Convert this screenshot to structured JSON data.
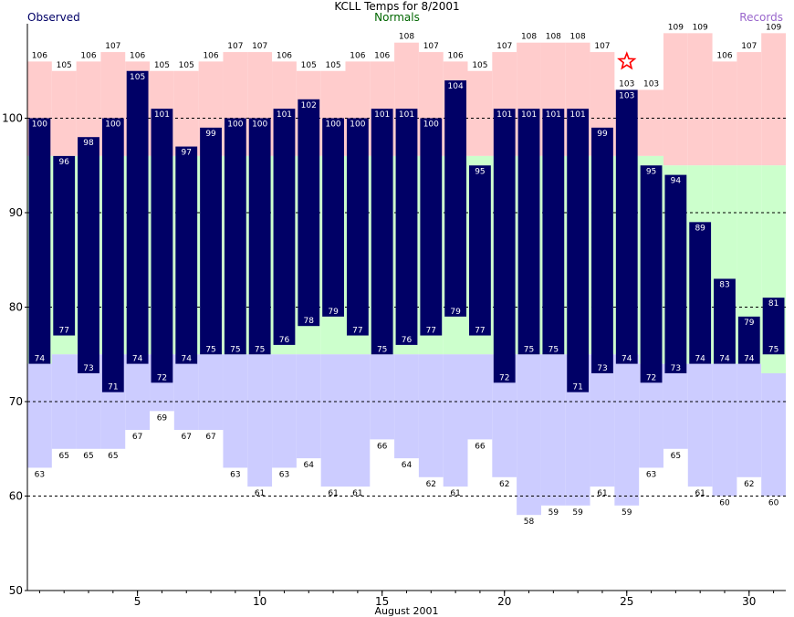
{
  "chart_data": {
    "type": "bar",
    "title": "KCLL Temps for 8/2001",
    "xlabel": "August 2001",
    "ylabel": "",
    "ylim": [
      50,
      110
    ],
    "xlim": [
      0.5,
      31.5
    ],
    "x_ticks": [
      5,
      10,
      15,
      20,
      25,
      30
    ],
    "y_ticks": [
      50,
      60,
      70,
      80,
      90,
      100
    ],
    "gridlines_y": [
      60,
      70,
      80,
      90,
      100
    ],
    "legend": [
      {
        "name": "Observed",
        "color": "#000066"
      },
      {
        "name": "Normals",
        "color": "#006600"
      },
      {
        "name": "Records",
        "color": "#9966cc"
      }
    ],
    "days": [
      1,
      2,
      3,
      4,
      5,
      6,
      7,
      8,
      9,
      10,
      11,
      12,
      13,
      14,
      15,
      16,
      17,
      18,
      19,
      20,
      21,
      22,
      23,
      24,
      25,
      26,
      27,
      28,
      29,
      30,
      31
    ],
    "observed_high": [
      100,
      96,
      98,
      100,
      105,
      101,
      97,
      99,
      100,
      100,
      101,
      102,
      100,
      100,
      101,
      101,
      100,
      104,
      95,
      101,
      101,
      101,
      101,
      99,
      103,
      95,
      94,
      89,
      83,
      79,
      81
    ],
    "observed_low": [
      74,
      77,
      73,
      71,
      74,
      72,
      74,
      75,
      75,
      75,
      76,
      78,
      79,
      77,
      75,
      76,
      77,
      79,
      77,
      72,
      75,
      75,
      71,
      73,
      74,
      72,
      73,
      74,
      74,
      74,
      75
    ],
    "normal_high": [
      96,
      96,
      96,
      96,
      96,
      96,
      96,
      96,
      96,
      96,
      96,
      96,
      96,
      96,
      96,
      96,
      96,
      96,
      96,
      96,
      96,
      96,
      96,
      96,
      96,
      96,
      95,
      95,
      95,
      95,
      95
    ],
    "normal_low": [
      74,
      75,
      75,
      75,
      75,
      75,
      75,
      75,
      75,
      75,
      75,
      75,
      75,
      75,
      75,
      75,
      75,
      75,
      75,
      75,
      75,
      75,
      75,
      75,
      75,
      74,
      74,
      74,
      74,
      74,
      73
    ],
    "record_high": [
      106,
      105,
      106,
      107,
      106,
      105,
      105,
      106,
      107,
      107,
      106,
      105,
      105,
      106,
      106,
      108,
      107,
      106,
      105,
      107,
      108,
      108,
      108,
      107,
      103,
      103,
      109,
      109,
      106,
      107,
      109
    ],
    "record_low": [
      63,
      65,
      65,
      65,
      67,
      69,
      67,
      67,
      63,
      61,
      63,
      64,
      61,
      61,
      66,
      64,
      62,
      61,
      66,
      62,
      58,
      59,
      59,
      61,
      59,
      63,
      65,
      61,
      60,
      62,
      60
    ],
    "marker": {
      "day": 25,
      "value": 106,
      "symbol": "star",
      "color": "#ff0000"
    },
    "colors": {
      "observed_bar": "#000066",
      "record_high_band": "#ffcccc",
      "normal_band": "#ccffcc",
      "record_low_band": "#ccccff",
      "label_on_bar": "#ffffff",
      "label_off_bar": "#000000"
    }
  }
}
